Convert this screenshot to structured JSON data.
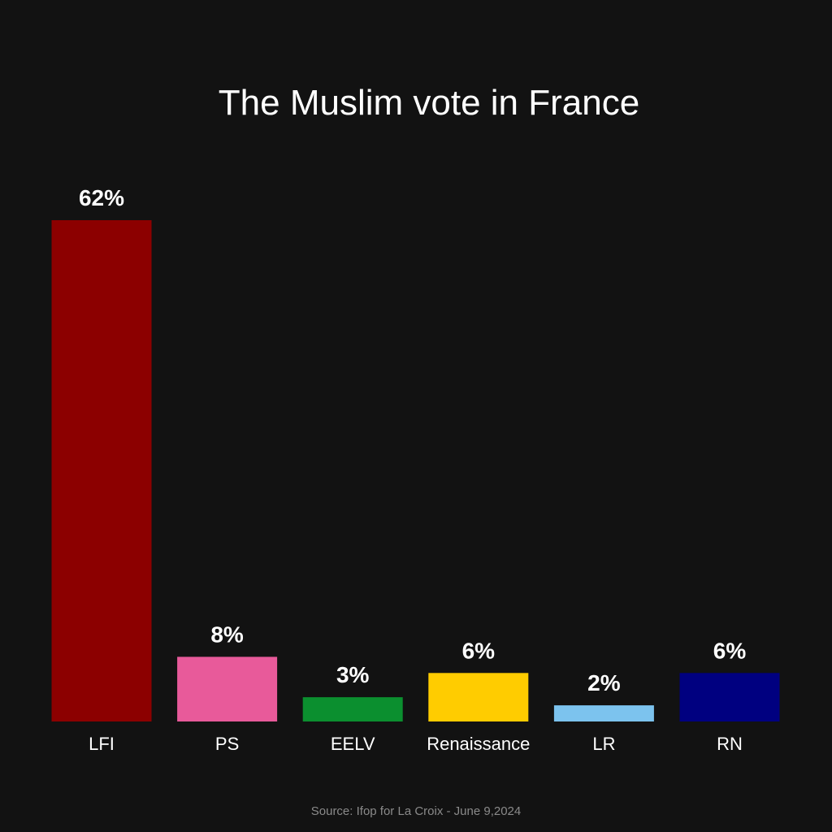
{
  "chart_data": {
    "type": "bar",
    "title": "The Muslim vote in France",
    "categories": [
      "LFI",
      "PS",
      "EELV",
      "Renaissance",
      "LR",
      "RN"
    ],
    "values": [
      62,
      8,
      3,
      6,
      2,
      6
    ],
    "value_labels": [
      "62%",
      "8%",
      "3%",
      "6%",
      "2%",
      "6%"
    ],
    "colors": [
      "#8c0000",
      "#e85a9a",
      "#0b8f2f",
      "#ffcc00",
      "#7cc3ee",
      "#000080"
    ],
    "xlabel": "",
    "ylabel": "",
    "grid": false,
    "legend": "none"
  },
  "source": "Source: Ifop for La Croix - June 9,2024"
}
